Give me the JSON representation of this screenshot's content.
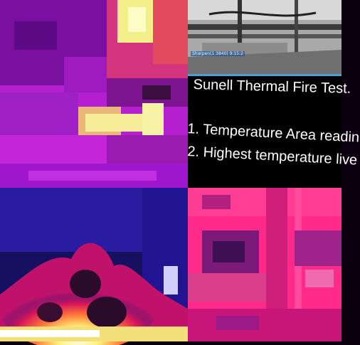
{
  "camera": {
    "overlay_label": "Sharpen(1 3840) 9:15:2"
  },
  "slide": {
    "title": "Sunell Thermal Fire Test.",
    "lines": [
      "1. Temperature Area readin",
      "2. Highest temperature live"
    ]
  },
  "colors": {
    "magenta": "#c21bd6",
    "pink": "#ff2a8a",
    "yellow": "#f7f09a",
    "deep_blue": "#1a1470",
    "accent": "#4aa0d8"
  }
}
